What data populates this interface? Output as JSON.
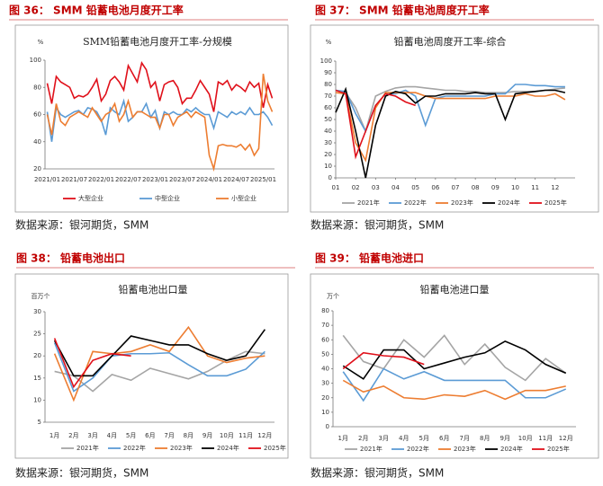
{
  "chart_data": [
    {
      "type": "line",
      "caption": "图 36：  SMM 铅蓄电池月度开工率",
      "title": "SMM铅蓄电池月度开工率-分规模",
      "unit": "%",
      "source": "数据来源：银河期货，SMM",
      "categories": [
        "2021/01",
        null,
        null,
        null,
        null,
        null,
        "2021/07",
        null,
        null,
        null,
        null,
        null,
        "2022/01",
        null,
        null,
        null,
        null,
        null,
        "2022/07",
        null,
        null,
        null,
        null,
        null,
        "2023/01",
        null,
        null,
        null,
        null,
        null,
        "2023/07",
        null,
        null,
        null,
        null,
        null,
        "2024/01",
        null,
        null,
        null,
        null,
        null,
        "2024/07",
        null,
        null,
        null,
        null,
        null,
        "2025/01",
        null,
        null
      ],
      "ylim": [
        20,
        100
      ],
      "yticks": [
        20,
        40,
        60,
        80,
        100
      ],
      "series": [
        {
          "name": "大型企业",
          "color": "#e0101a",
          "values": [
            83,
            68,
            88,
            84,
            82,
            80,
            72,
            74,
            73,
            75,
            80,
            86,
            70,
            75,
            85,
            88,
            84,
            78,
            96,
            90,
            84,
            98,
            93,
            80,
            84,
            70,
            82,
            84,
            85,
            80,
            68,
            72,
            72,
            78,
            85,
            80,
            75,
            62,
            84,
            82,
            85,
            78,
            82,
            80,
            77,
            84,
            80,
            83,
            65,
            82,
            72
          ]
        },
        {
          "name": "中型企业",
          "color": "#5b9bd5",
          "values": [
            62,
            40,
            65,
            60,
            58,
            60,
            62,
            63,
            60,
            65,
            64,
            62,
            56,
            45,
            65,
            62,
            60,
            70,
            55,
            58,
            62,
            62,
            68,
            58,
            63,
            50,
            62,
            60,
            62,
            60,
            60,
            64,
            62,
            65,
            62,
            60,
            60,
            50,
            62,
            60,
            58,
            62,
            60,
            62,
            60,
            65,
            60,
            60,
            62,
            58,
            52
          ]
        },
        {
          "name": "小型企业",
          "color": "#ed7d31",
          "values": [
            60,
            45,
            68,
            55,
            52,
            58,
            60,
            62,
            60,
            58,
            65,
            60,
            55,
            60,
            62,
            68,
            55,
            60,
            70,
            58,
            62,
            62,
            60,
            58,
            58,
            50,
            60,
            60,
            52,
            58,
            60,
            62,
            58,
            62,
            60,
            58,
            30,
            20,
            37,
            38,
            37,
            37,
            36,
            38,
            34,
            38,
            30,
            35,
            90,
            70,
            62
          ]
        }
      ]
    },
    {
      "type": "line",
      "caption": "图 37：  SMM 铅蓄电池周度开工率",
      "title": "铅蓄电池周度开工率-综合",
      "unit": "%",
      "source": "数据来源：银河期货，SMM",
      "x": [
        1,
        1.5,
        2,
        2.5,
        3,
        3.5,
        4,
        4.5,
        5,
        5.5,
        6,
        6.5,
        7,
        7.5,
        8,
        8.5,
        9,
        9.5,
        10,
        10.5,
        11,
        11.5,
        12,
        12.5
      ],
      "xlim": [
        1,
        13
      ],
      "xticks": [
        {
          "value": 1,
          "label": "01"
        },
        {
          "value": 2,
          "label": "02"
        },
        {
          "value": 3,
          "label": "03"
        },
        {
          "value": 4,
          "label": "04"
        },
        {
          "value": 5,
          "label": "05"
        },
        {
          "value": 6,
          "label": "06"
        },
        {
          "value": 7,
          "label": "07"
        },
        {
          "value": 8,
          "label": "08"
        },
        {
          "value": 9,
          "label": "09"
        },
        {
          "value": 10,
          "label": "10"
        },
        {
          "value": 11,
          "label": "11"
        },
        {
          "value": 12,
          "label": "12"
        }
      ],
      "ylim": [
        0,
        100
      ],
      "yticks": [
        0,
        10,
        20,
        30,
        40,
        50,
        60,
        70,
        80,
        90,
        100
      ],
      "series": [
        {
          "name": "2021年",
          "color": "#a5a5a5",
          "values": [
            75,
            73,
            60,
            40,
            70,
            74,
            77,
            78,
            78,
            77,
            76,
            75,
            75,
            74,
            74,
            73,
            73,
            73,
            74,
            74,
            74,
            75,
            76,
            77
          ]
        },
        {
          "name": "2022年",
          "color": "#5b9bd5",
          "values": [
            75,
            74,
            55,
            40,
            62,
            72,
            72,
            75,
            70,
            45,
            68,
            70,
            70,
            70,
            70,
            70,
            72,
            72,
            80,
            80,
            79,
            79,
            78,
            78
          ]
        },
        {
          "name": "2023年",
          "color": "#ed7d31",
          "values": [
            73,
            72,
            30,
            15,
            60,
            73,
            73,
            73,
            73,
            70,
            68,
            68,
            68,
            68,
            68,
            68,
            70,
            70,
            70,
            72,
            70,
            70,
            72,
            67
          ]
        },
        {
          "name": "2024年",
          "color": "#000000",
          "values": [
            56,
            76,
            40,
            0,
            45,
            70,
            74,
            72,
            64,
            70,
            70,
            72,
            72,
            72,
            73,
            72,
            72,
            50,
            72,
            73,
            74,
            75,
            75,
            73
          ]
        },
        {
          "name": "2025年",
          "color": "#e0101a",
          "values": [
            75,
            72,
            18,
            40,
            62,
            72,
            70,
            65,
            62,
            null,
            null,
            null,
            null,
            null,
            null,
            null,
            null,
            null,
            null,
            null,
            null,
            null,
            null,
            null
          ]
        }
      ]
    },
    {
      "type": "line",
      "caption": "图 38：  铅蓄电池出口",
      "title": "铅蓄电池出口量",
      "unit": "百万个",
      "source": "数据来源：银河期货，SMM",
      "categories": [
        "1月",
        "2月",
        "3月",
        "4月",
        "5月",
        "6月",
        "7月",
        "8月",
        "9月",
        "10月",
        "11月",
        "12月"
      ],
      "ylim": [
        5,
        30
      ],
      "yticks": [
        5,
        10,
        15,
        20,
        25,
        30
      ],
      "series": [
        {
          "name": "2021年",
          "color": "#a5a5a5",
          "values": [
            16.5,
            15.5,
            12,
            15.8,
            14.5,
            17.2,
            16,
            14.8,
            16.5,
            19,
            21,
            20.5
          ]
        },
        {
          "name": "2022年",
          "color": "#5b9bd5",
          "values": [
            23,
            12,
            15,
            20,
            20.5,
            20.5,
            20.7,
            18,
            15.5,
            15.5,
            17,
            21
          ]
        },
        {
          "name": "2023年",
          "color": "#ed7d31",
          "values": [
            20.5,
            10,
            21,
            20.5,
            21,
            22.5,
            21,
            26.5,
            20,
            18.5,
            19.5,
            20
          ]
        },
        {
          "name": "2024年",
          "color": "#000000",
          "values": [
            23.5,
            15.5,
            15.5,
            20,
            24.5,
            23.5,
            22.5,
            22.5,
            20.5,
            19,
            20,
            26
          ]
        },
        {
          "name": "2025年",
          "color": "#e0101a",
          "values": [
            24,
            13,
            19,
            20.5,
            20,
            null,
            null,
            null,
            null,
            null,
            null,
            null
          ]
        }
      ]
    },
    {
      "type": "line",
      "caption": "图 39：  铅蓄电池进口",
      "title": "铅蓄电池进口量",
      "unit": "万个",
      "source": "数据来源：银河期货，SMM",
      "categories": [
        "1月",
        "2月",
        "3月",
        "4月",
        "5月",
        "6月",
        "7月",
        "8月",
        "9月",
        "10月",
        "11月",
        "12月"
      ],
      "ylim": [
        0,
        80
      ],
      "yticks": [
        0,
        10,
        20,
        30,
        40,
        50,
        60,
        70,
        80
      ],
      "series": [
        {
          "name": "2021年",
          "color": "#a5a5a5",
          "values": [
            63,
            45,
            40,
            60,
            48,
            63,
            43,
            57,
            41,
            32,
            47,
            37
          ]
        },
        {
          "name": "2022年",
          "color": "#5b9bd5",
          "values": [
            38,
            18,
            40,
            33,
            38,
            32,
            32,
            32,
            32,
            20,
            20,
            26
          ]
        },
        {
          "name": "2023年",
          "color": "#ed7d31",
          "values": [
            32,
            24,
            28,
            20,
            19,
            22,
            21,
            25,
            19,
            25,
            25,
            28
          ]
        },
        {
          "name": "2024年",
          "color": "#000000",
          "values": [
            42,
            33,
            53,
            53,
            40,
            44,
            48,
            51,
            59,
            53,
            43,
            37
          ]
        },
        {
          "name": "2025年",
          "color": "#e0101a",
          "values": [
            40,
            51,
            49,
            48,
            43,
            null,
            null,
            null,
            null,
            null,
            null,
            null
          ]
        }
      ]
    }
  ]
}
